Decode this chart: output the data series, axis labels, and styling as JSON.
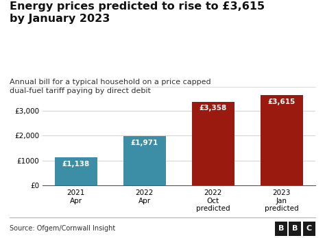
{
  "title": "Energy prices predicted to rise to £3,615\nby January 2023",
  "subtitle": "Annual bill for a typical household on a price capped\ndual-fuel tariff paying by direct debit",
  "categories": [
    "2021\nApr",
    "2022\nApr",
    "2022\nOct\npredicted",
    "2023\nJan\npredicted"
  ],
  "values": [
    1138,
    1971,
    3358,
    3615
  ],
  "bar_colors": [
    "#3b8ea5",
    "#3b8ea5",
    "#9b1a10",
    "#9b1a10"
  ],
  "bar_labels": [
    "£1,138",
    "£1,971",
    "£3,358",
    "£3,615"
  ],
  "yticks": [
    0,
    1000,
    2000,
    3000
  ],
  "ytick_labels": [
    "£0",
    "£1000",
    "£2,000",
    "£3,000"
  ],
  "ylim": [
    0,
    4000
  ],
  "source_text": "Source: Ofgem/Cornwall Insight",
  "bbc_letters": [
    "B",
    "B",
    "C"
  ],
  "bbc_box_color": "#1a1a1a",
  "bbc_text_color": "#ffffff",
  "background_color": "#ffffff",
  "title_fontsize": 11.5,
  "subtitle_fontsize": 8,
  "label_fontsize": 7.5,
  "tick_fontsize": 7.5,
  "source_fontsize": 7
}
